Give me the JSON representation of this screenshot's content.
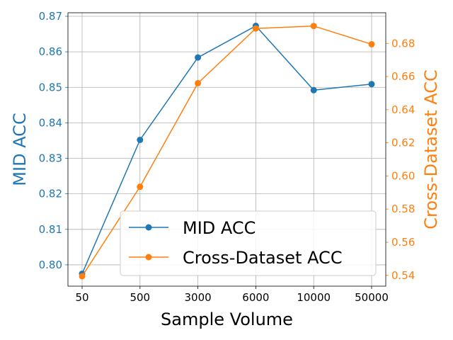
{
  "chart_data": {
    "type": "line",
    "xlabel": "Sample Volume",
    "ylabel_left": "MID ACC",
    "ylabel_right": "Cross-Dataset ACC",
    "categories": [
      "50",
      "500",
      "3000",
      "6000",
      "10000",
      "50000"
    ],
    "ylim_left": [
      0.794,
      0.871
    ],
    "ylim_right": [
      0.5335,
      0.6985
    ],
    "yticks_left": [
      "0.80",
      "0.81",
      "0.82",
      "0.83",
      "0.84",
      "0.85",
      "0.86",
      "0.87"
    ],
    "yticks_right": [
      "0.54",
      "0.56",
      "0.58",
      "0.60",
      "0.62",
      "0.64",
      "0.66",
      "0.68"
    ],
    "grid": true,
    "legend_position": "lower-right",
    "series": [
      {
        "name": "MID ACC",
        "axis": "left",
        "color": "#1f77b4",
        "values": [
          0.7975,
          0.8352,
          0.8584,
          0.8673,
          0.8492,
          0.8509
        ]
      },
      {
        "name": "Cross-Dataset ACC",
        "axis": "right",
        "color": "#ff7f0e",
        "values": [
          0.5395,
          0.5935,
          0.656,
          0.689,
          0.6905,
          0.6795
        ]
      }
    ]
  }
}
